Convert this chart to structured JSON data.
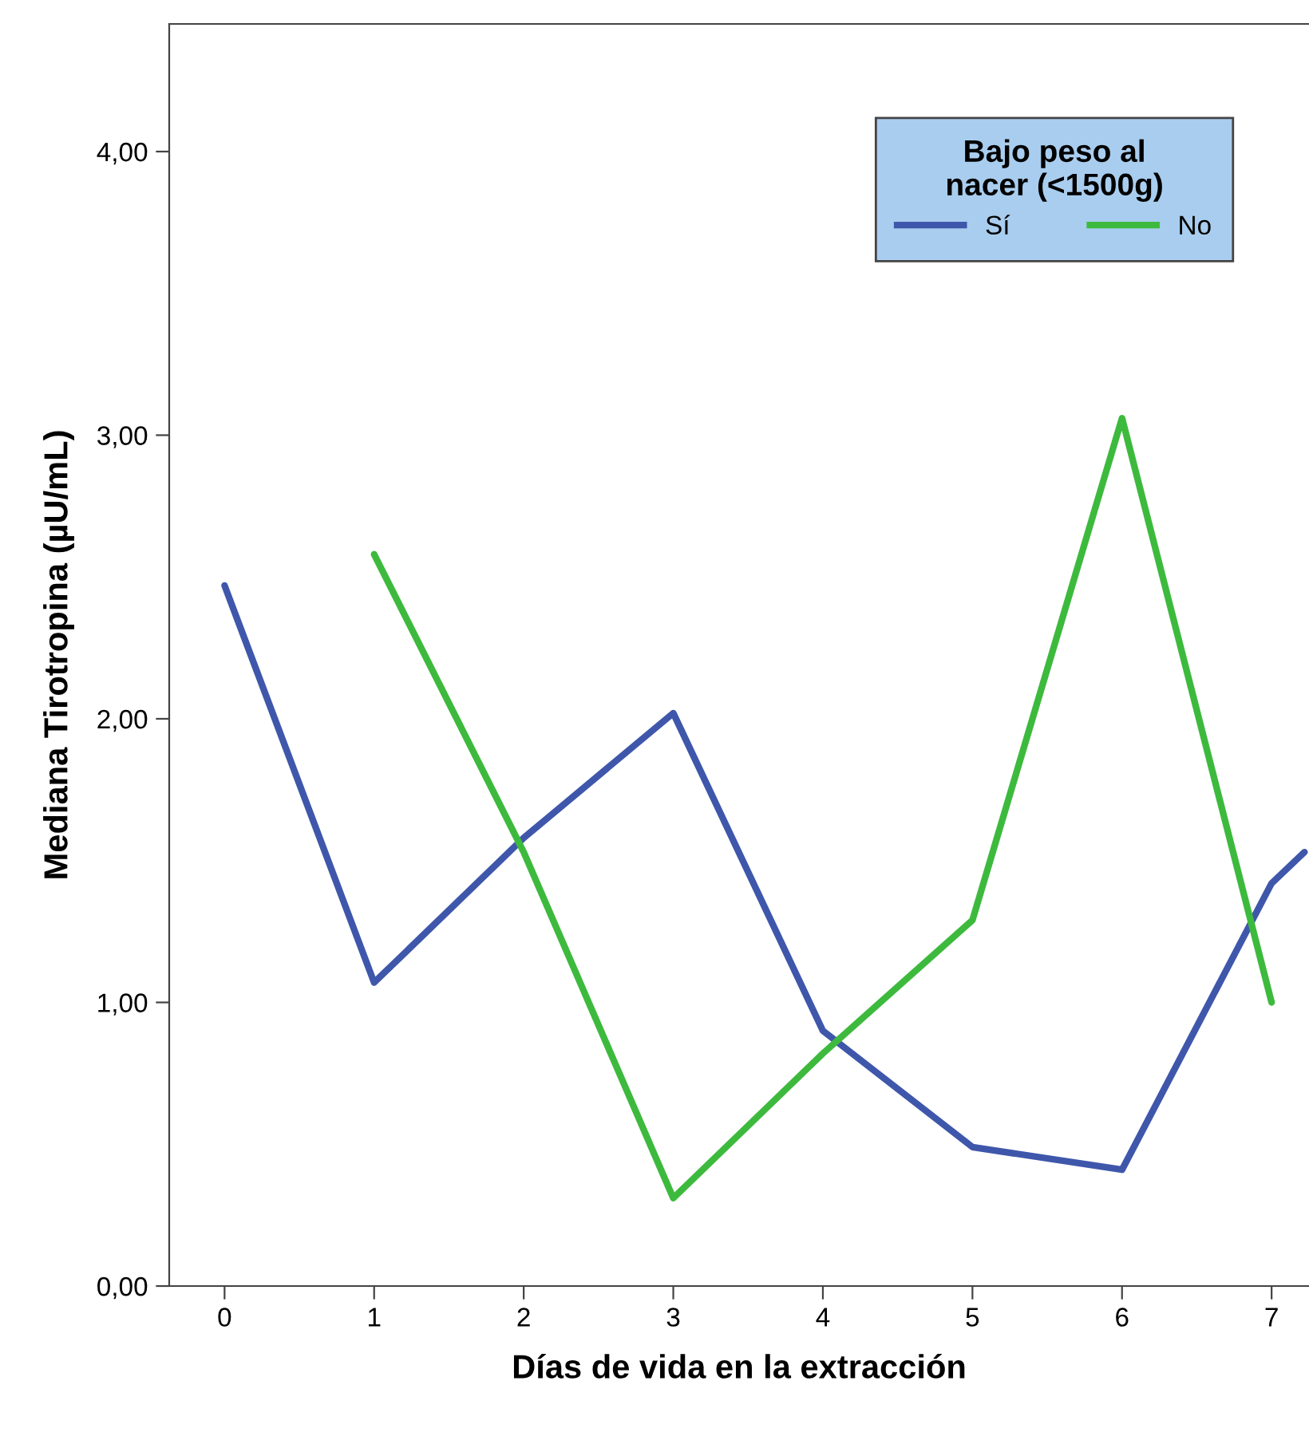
{
  "chart_data": {
    "type": "line",
    "xlabel": "Días de vida en la extracción",
    "ylabel": "Mediana Tirotropina (µU/mL)",
    "legend_title": "Bajo peso al\nnacer (<1500g)",
    "legend": "top right",
    "grid": false,
    "marker": "none",
    "line_style": "solid",
    "xlim": [
      -0.37,
      7.25
    ],
    "xticks": [
      0,
      1,
      2,
      3,
      4,
      5,
      6,
      7
    ],
    "ylim": [
      0,
      4.45
    ],
    "yticks": [
      {
        "value": 0,
        "label": "0,00"
      },
      {
        "value": 1,
        "label": "1,00"
      },
      {
        "value": 2,
        "label": "2,00"
      },
      {
        "value": 3,
        "label": "3,00"
      },
      {
        "value": 4,
        "label": "4,00"
      }
    ],
    "series": [
      {
        "name": "Sí",
        "color": "#3f57ab",
        "x": [
          0,
          1,
          2,
          3,
          4,
          5,
          6,
          7,
          7.22
        ],
        "values": [
          2.47,
          1.07,
          1.58,
          2.02,
          0.9,
          0.49,
          0.41,
          1.42,
          1.53
        ]
      },
      {
        "name": "No",
        "color": "#3dba3d",
        "x": [
          1,
          2,
          3,
          4,
          5,
          6,
          7
        ],
        "values": [
          2.58,
          1.53,
          0.31,
          0.82,
          1.29,
          3.06,
          1.0
        ]
      }
    ]
  }
}
